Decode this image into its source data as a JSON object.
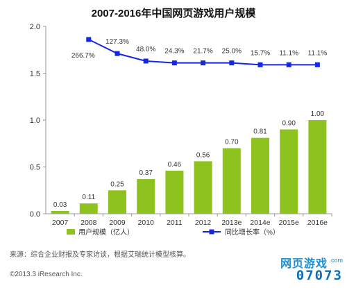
{
  "chart_data": {
    "type": "bar",
    "title": "2007-2016年中国网页游戏用户规模",
    "categories": [
      "2007",
      "2008",
      "2009",
      "2010",
      "2011",
      "2012",
      "2013e",
      "2014e",
      "2015e",
      "2016e"
    ],
    "series": [
      {
        "name": "用户规模（亿人）",
        "type": "bar",
        "color": "#8dc21f",
        "values": [
          0.03,
          0.11,
          0.25,
          0.37,
          0.46,
          0.56,
          0.7,
          0.81,
          0.9,
          1.0
        ],
        "labels": [
          "0.03",
          "0.11",
          "0.25",
          "0.37",
          "0.46",
          "0.56",
          "0.70",
          "0.81",
          "0.90",
          "1.00"
        ]
      },
      {
        "name": "同比增长率（%）",
        "type": "line",
        "color": "#1428e0",
        "values": [
          null,
          1.86,
          1.71,
          1.63,
          1.61,
          1.61,
          1.61,
          1.59,
          1.59,
          1.59
        ],
        "labels": [
          "",
          "266.7%",
          "127.3%",
          "48.0%",
          "24.3%",
          "21.7%",
          "25.0%",
          "15.7%",
          "11.1%",
          "11.1%"
        ]
      }
    ],
    "yticks": [
      "0.0",
      "0.5",
      "1.0",
      "1.5",
      "2.0"
    ],
    "ylim": [
      0,
      2.0
    ],
    "legend_position": "bottom",
    "grid": false
  },
  "footer": {
    "source": "来源：综合企业财报及专家访谈，根据艾瑞统计模型核算。",
    "copyright": "©2013.3 iResearch Inc."
  },
  "watermark": {
    "top": "网页游戏",
    "bottom": "07073",
    "suffix": ".com"
  }
}
